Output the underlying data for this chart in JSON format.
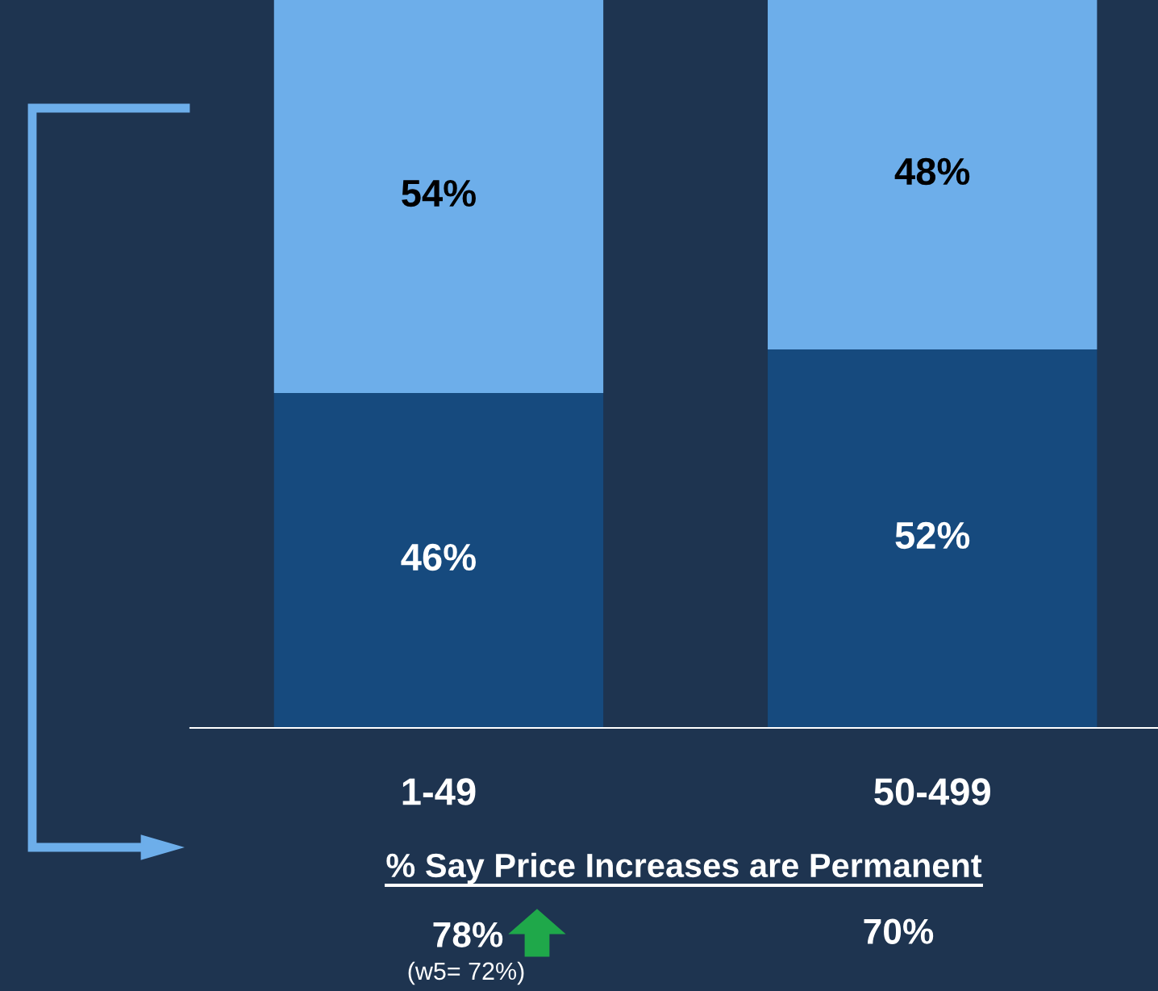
{
  "chart_data": {
    "type": "bar",
    "stacked": true,
    "categories": [
      "1-49",
      "50-499"
    ],
    "series": [
      {
        "color": "#164a7e",
        "values": [
          46,
          52
        ],
        "value_labels": [
          "46%",
          "52%"
        ]
      },
      {
        "color": "#6daeea",
        "values": [
          54,
          48
        ],
        "value_labels": [
          "54%",
          "48%"
        ]
      }
    ],
    "tick_labels": "x",
    "grid": false,
    "legend": false,
    "annotations": [
      "% Say Price Increases are Permanent",
      "78%",
      "70%",
      "(w5= 72%)"
    ]
  }
}
